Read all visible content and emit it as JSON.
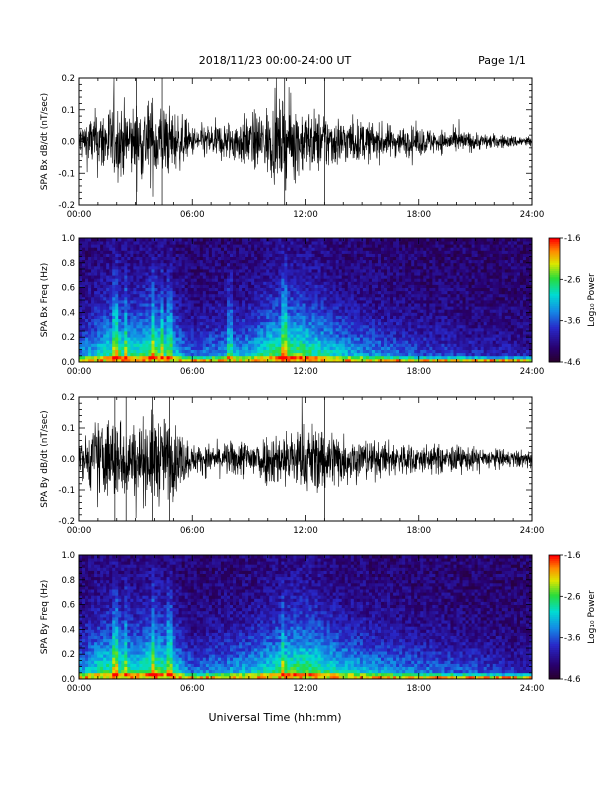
{
  "header": {
    "title": "2018/11/23  00:00-24:00 UT",
    "page": "Page 1/1"
  },
  "footer": {
    "xlabel": "Universal Time (hh:mm)"
  },
  "colorbar": {
    "label": "Log₁₀ Power",
    "ticks": [
      "-1.6",
      "-2.6",
      "-3.6",
      "-4.6"
    ]
  },
  "chart_data": [
    {
      "type": "line",
      "ylabel": "SPA Bx dB/dt (nT/sec)",
      "xlim": [
        0,
        24
      ],
      "ylim": [
        -0.2,
        0.2
      ],
      "xticks": [
        "00:00",
        "06:00",
        "12:00",
        "18:00",
        "24:00"
      ],
      "yticks": [
        "0.2",
        "0.1",
        "0.0",
        "-0.1",
        "-0.2"
      ],
      "series": [
        {
          "x": [
            0,
            1,
            2,
            3,
            4,
            5,
            6,
            7,
            8,
            9,
            10,
            11,
            12,
            13,
            14,
            15,
            16,
            17,
            18,
            19,
            20,
            21,
            22,
            23,
            24
          ],
          "amplitude": [
            0.06,
            0.11,
            0.13,
            0.12,
            0.15,
            0.11,
            0.05,
            0.06,
            0.07,
            0.09,
            0.12,
            0.14,
            0.11,
            0.1,
            0.08,
            0.07,
            0.06,
            0.05,
            0.05,
            0.04,
            0.04,
            0.03,
            0.025,
            0.02,
            0.02
          ]
        }
      ]
    },
    {
      "type": "heatmap",
      "ylabel": "SPA Bx Freq (Hz)",
      "xlim": [
        0,
        24
      ],
      "ylim": [
        0.0,
        1.0
      ],
      "zlim": [
        -4.6,
        -1.6
      ],
      "xticks": [
        "00:00",
        "06:00",
        "12:00",
        "18:00",
        "24:00"
      ],
      "yticks": [
        "1.0",
        "0.8",
        "0.6",
        "0.4",
        "0.2",
        "0.0"
      ],
      "activity": [
        0.4,
        0.55,
        0.7,
        0.6,
        0.75,
        0.55,
        0.35,
        0.4,
        0.45,
        0.5,
        0.65,
        0.75,
        0.7,
        0.6,
        0.5,
        0.45,
        0.4,
        0.35,
        0.3,
        0.28,
        0.26,
        0.22,
        0.2,
        0.18,
        0.15
      ]
    },
    {
      "type": "line",
      "ylabel": "SPA By dB/dt (nT/sec)",
      "xlim": [
        0,
        24
      ],
      "ylim": [
        -0.2,
        0.2
      ],
      "xticks": [
        "00:00",
        "06:00",
        "12:00",
        "18:00",
        "24:00"
      ],
      "yticks": [
        "0.2",
        "0.1",
        "0.0",
        "-0.1",
        "-0.2"
      ],
      "series": [
        {
          "x": [
            0,
            1,
            2,
            3,
            4,
            5,
            6,
            7,
            8,
            9,
            10,
            11,
            12,
            13,
            14,
            15,
            16,
            17,
            18,
            19,
            20,
            21,
            22,
            23,
            24
          ],
          "amplitude": [
            0.05,
            0.14,
            0.15,
            0.12,
            0.16,
            0.13,
            0.05,
            0.05,
            0.06,
            0.07,
            0.09,
            0.1,
            0.12,
            0.12,
            0.09,
            0.07,
            0.06,
            0.06,
            0.05,
            0.05,
            0.045,
            0.04,
            0.035,
            0.03,
            0.03
          ]
        }
      ]
    },
    {
      "type": "heatmap",
      "ylabel": "SPA By Freq (Hz)",
      "xlim": [
        0,
        24
      ],
      "ylim": [
        0.0,
        1.0
      ],
      "zlim": [
        -4.6,
        -1.6
      ],
      "xticks": [
        "00:00",
        "06:00",
        "12:00",
        "18:00",
        "24:00"
      ],
      "yticks": [
        "1.0",
        "0.8",
        "0.6",
        "0.4",
        "0.2",
        "0.0"
      ],
      "activity": [
        0.45,
        0.6,
        0.7,
        0.6,
        0.75,
        0.6,
        0.35,
        0.4,
        0.45,
        0.5,
        0.6,
        0.7,
        0.72,
        0.65,
        0.55,
        0.5,
        0.45,
        0.4,
        0.38,
        0.35,
        0.33,
        0.3,
        0.25,
        0.22,
        0.2
      ]
    }
  ]
}
